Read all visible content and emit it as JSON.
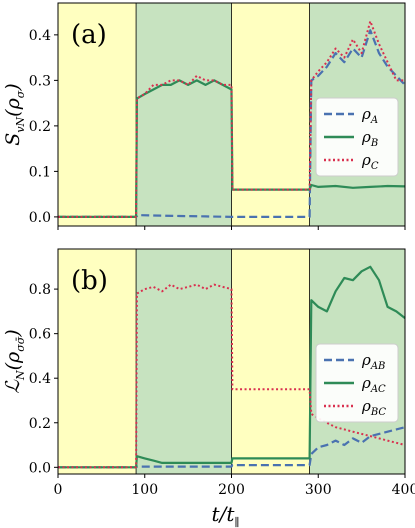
{
  "chart_data": [
    {
      "type": "line",
      "panel_label": "(a)",
      "ylabel_main": "S",
      "ylabel_sub": "vN",
      "ylabel_arg": "(ρ",
      "ylabel_arg_sub": "σ",
      "ylabel_close": ")",
      "xlim": [
        0,
        400
      ],
      "ylim": [
        -0.02,
        0.47
      ],
      "xticks": [
        0,
        100,
        200,
        300,
        400
      ],
      "xtick_labels": [
        "",
        "",
        "",
        "",
        ""
      ],
      "yticks": [
        0.0,
        0.1,
        0.2,
        0.3,
        0.4
      ],
      "ytick_labels": [
        "0.0",
        "0.1",
        "0.2",
        "0.3",
        "0.4"
      ],
      "shaded_regions": [
        {
          "x": [
            0,
            90
          ],
          "color": "#ffffc0"
        },
        {
          "x": [
            90,
            200
          ],
          "color": "#c7e3c0"
        },
        {
          "x": [
            200,
            290
          ],
          "color": "#ffffc0"
        },
        {
          "x": [
            290,
            400
          ],
          "color": "#c7e3c0"
        }
      ],
      "series": [
        {
          "name": "ρ",
          "name_sub": "A",
          "color": "#4a72b0",
          "style": "dashed",
          "points": [
            [
              0,
              0.0
            ],
            [
              90,
              0.0
            ],
            [
              92,
              0.004
            ],
            [
              110,
              0.003
            ],
            [
              140,
              0.002
            ],
            [
              170,
              0.001
            ],
            [
              200,
              0.0
            ],
            [
              290,
              0.0
            ],
            [
              292,
              0.3
            ],
            [
              300,
              0.31
            ],
            [
              310,
              0.33
            ],
            [
              320,
              0.36
            ],
            [
              330,
              0.34
            ],
            [
              340,
              0.37
            ],
            [
              350,
              0.35
            ],
            [
              360,
              0.41
            ],
            [
              370,
              0.36
            ],
            [
              380,
              0.33
            ],
            [
              390,
              0.31
            ],
            [
              400,
              0.29
            ]
          ]
        },
        {
          "name": "ρ",
          "name_sub": "B",
          "color": "#2e8b57",
          "style": "solid",
          "points": [
            [
              0,
              0.0
            ],
            [
              90,
              0.0
            ],
            [
              91,
              0.26
            ],
            [
              100,
              0.27
            ],
            [
              110,
              0.28
            ],
            [
              120,
              0.29
            ],
            [
              130,
              0.29
            ],
            [
              140,
              0.3
            ],
            [
              150,
              0.29
            ],
            [
              160,
              0.3
            ],
            [
              170,
              0.29
            ],
            [
              180,
              0.3
            ],
            [
              190,
              0.29
            ],
            [
              200,
              0.28
            ],
            [
              201,
              0.06
            ],
            [
              290,
              0.06
            ],
            [
              292,
              0.07
            ],
            [
              300,
              0.066
            ],
            [
              320,
              0.068
            ],
            [
              340,
              0.064
            ],
            [
              360,
              0.066
            ],
            [
              380,
              0.068
            ],
            [
              400,
              0.067
            ]
          ]
        },
        {
          "name": "ρ",
          "name_sub": "C",
          "color": "#d9304f",
          "style": "dotted",
          "points": [
            [
              0,
              0.0
            ],
            [
              90,
              0.0
            ],
            [
              91,
              0.26
            ],
            [
              100,
              0.27
            ],
            [
              110,
              0.29
            ],
            [
              120,
              0.29
            ],
            [
              130,
              0.3
            ],
            [
              140,
              0.3
            ],
            [
              150,
              0.29
            ],
            [
              160,
              0.31
            ],
            [
              170,
              0.3
            ],
            [
              180,
              0.3
            ],
            [
              190,
              0.29
            ],
            [
              200,
              0.29
            ],
            [
              201,
              0.06
            ],
            [
              290,
              0.06
            ],
            [
              292,
              0.3
            ],
            [
              300,
              0.32
            ],
            [
              310,
              0.34
            ],
            [
              320,
              0.37
            ],
            [
              330,
              0.35
            ],
            [
              340,
              0.39
            ],
            [
              350,
              0.36
            ],
            [
              360,
              0.43
            ],
            [
              370,
              0.38
            ],
            [
              380,
              0.34
            ],
            [
              390,
              0.3
            ],
            [
              400,
              0.3
            ]
          ]
        }
      ],
      "legend_position": "right"
    },
    {
      "type": "line",
      "panel_label": "(b)",
      "ylabel_main": "ℒ",
      "ylabel_sub": "N",
      "ylabel_arg": "(ρ",
      "ylabel_arg_sub": "σσ̄",
      "ylabel_close": ")",
      "xlabel": "t/t",
      "xlabel_sub": "∥",
      "xlim": [
        0,
        400
      ],
      "ylim": [
        -0.03,
        0.98
      ],
      "xticks": [
        0,
        100,
        200,
        300,
        400
      ],
      "xtick_labels": [
        "0",
        "100",
        "200",
        "300",
        "400"
      ],
      "yticks": [
        0.0,
        0.2,
        0.4,
        0.6,
        0.8
      ],
      "ytick_labels": [
        "0.0",
        "0.2",
        "0.4",
        "0.6",
        "0.8"
      ],
      "shaded_regions": [
        {
          "x": [
            0,
            90
          ],
          "color": "#ffffc0"
        },
        {
          "x": [
            90,
            200
          ],
          "color": "#c7e3c0"
        },
        {
          "x": [
            200,
            290
          ],
          "color": "#ffffc0"
        },
        {
          "x": [
            290,
            400
          ],
          "color": "#c7e3c0"
        }
      ],
      "series": [
        {
          "name": "ρ",
          "name_sub": "AB",
          "color": "#4a72b0",
          "style": "dashed",
          "points": [
            [
              0,
              0.0
            ],
            [
              90,
              0.0
            ],
            [
              91,
              0.003
            ],
            [
              200,
              0.003
            ],
            [
              201,
              0.01
            ],
            [
              290,
              0.01
            ],
            [
              292,
              0.06
            ],
            [
              300,
              0.09
            ],
            [
              310,
              0.1
            ],
            [
              320,
              0.12
            ],
            [
              330,
              0.1
            ],
            [
              340,
              0.13
            ],
            [
              350,
              0.11
            ],
            [
              360,
              0.14
            ],
            [
              370,
              0.15
            ],
            [
              380,
              0.16
            ],
            [
              390,
              0.17
            ],
            [
              400,
              0.18
            ]
          ]
        },
        {
          "name": "ρ",
          "name_sub": "AC",
          "color": "#2e8b57",
          "style": "solid",
          "points": [
            [
              0,
              0.0
            ],
            [
              90,
              0.0
            ],
            [
              91,
              0.05
            ],
            [
              100,
              0.04
            ],
            [
              110,
              0.03
            ],
            [
              120,
              0.02
            ],
            [
              140,
              0.02
            ],
            [
              160,
              0.02
            ],
            [
              180,
              0.02
            ],
            [
              200,
              0.02
            ],
            [
              201,
              0.04
            ],
            [
              290,
              0.04
            ],
            [
              292,
              0.75
            ],
            [
              300,
              0.72
            ],
            [
              310,
              0.7
            ],
            [
              320,
              0.79
            ],
            [
              330,
              0.85
            ],
            [
              340,
              0.84
            ],
            [
              350,
              0.88
            ],
            [
              360,
              0.9
            ],
            [
              370,
              0.84
            ],
            [
              380,
              0.72
            ],
            [
              390,
              0.7
            ],
            [
              400,
              0.67
            ]
          ]
        },
        {
          "name": "ρ",
          "name_sub": "BC",
          "color": "#d9304f",
          "style": "dotted",
          "points": [
            [
              0,
              0.0
            ],
            [
              90,
              0.0
            ],
            [
              91,
              0.78
            ],
            [
              100,
              0.8
            ],
            [
              110,
              0.81
            ],
            [
              120,
              0.79
            ],
            [
              130,
              0.82
            ],
            [
              140,
              0.8
            ],
            [
              150,
              0.81
            ],
            [
              160,
              0.82
            ],
            [
              170,
              0.8
            ],
            [
              180,
              0.82
            ],
            [
              190,
              0.81
            ],
            [
              200,
              0.8
            ],
            [
              201,
              0.35
            ],
            [
              290,
              0.35
            ],
            [
              292,
              0.24
            ],
            [
              300,
              0.22
            ],
            [
              310,
              0.2
            ],
            [
              320,
              0.18
            ],
            [
              330,
              0.17
            ],
            [
              340,
              0.16
            ],
            [
              350,
              0.15
            ],
            [
              360,
              0.14
            ],
            [
              370,
              0.13
            ],
            [
              380,
              0.12
            ],
            [
              390,
              0.11
            ],
            [
              400,
              0.1
            ]
          ]
        }
      ],
      "legend_position": "right"
    }
  ]
}
